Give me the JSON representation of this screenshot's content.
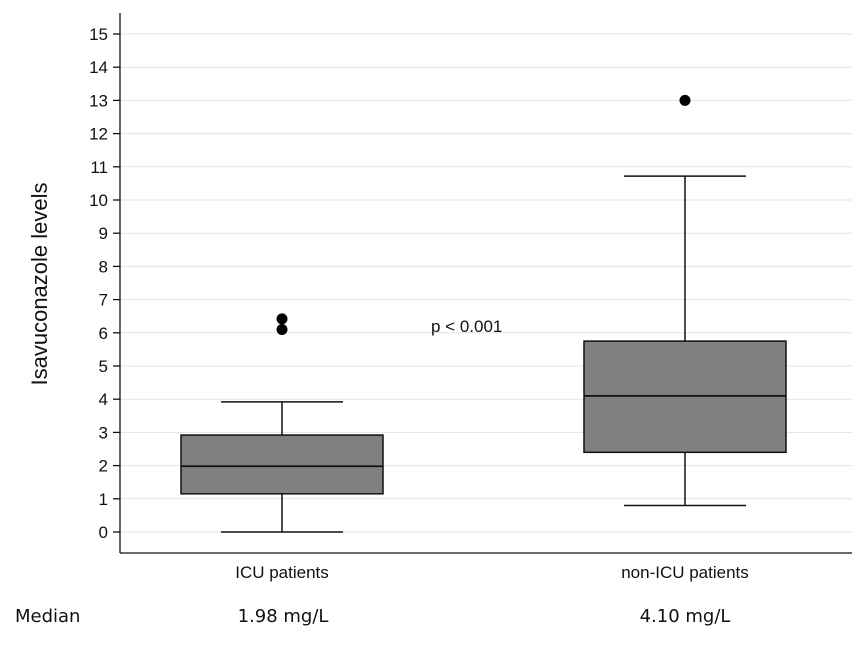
{
  "chart_data": {
    "type": "box",
    "ylabel": "Isavuconazole levels",
    "ylim": [
      0,
      15
    ],
    "yticks": [
      0,
      1,
      2,
      3,
      4,
      5,
      6,
      7,
      8,
      9,
      10,
      11,
      12,
      13,
      14,
      15
    ],
    "grid": true,
    "categories": [
      "ICU patients",
      "non-ICU patients"
    ],
    "boxes": [
      {
        "category": "ICU patients",
        "whisker_low": 0.0,
        "q1": 1.15,
        "median": 1.98,
        "q3": 2.92,
        "whisker_high": 3.92,
        "outliers": [
          6.1,
          6.42
        ]
      },
      {
        "category": "non-ICU patients",
        "whisker_low": 0.8,
        "q1": 2.4,
        "median": 4.1,
        "q3": 5.75,
        "whisker_high": 10.72,
        "outliers": [
          13.0
        ]
      }
    ],
    "annotation": "p < 0.001",
    "box_color": "#808080"
  },
  "median_row": {
    "label": "Median",
    "values": [
      "1.98 mg/L",
      "4.10 mg/L"
    ]
  }
}
